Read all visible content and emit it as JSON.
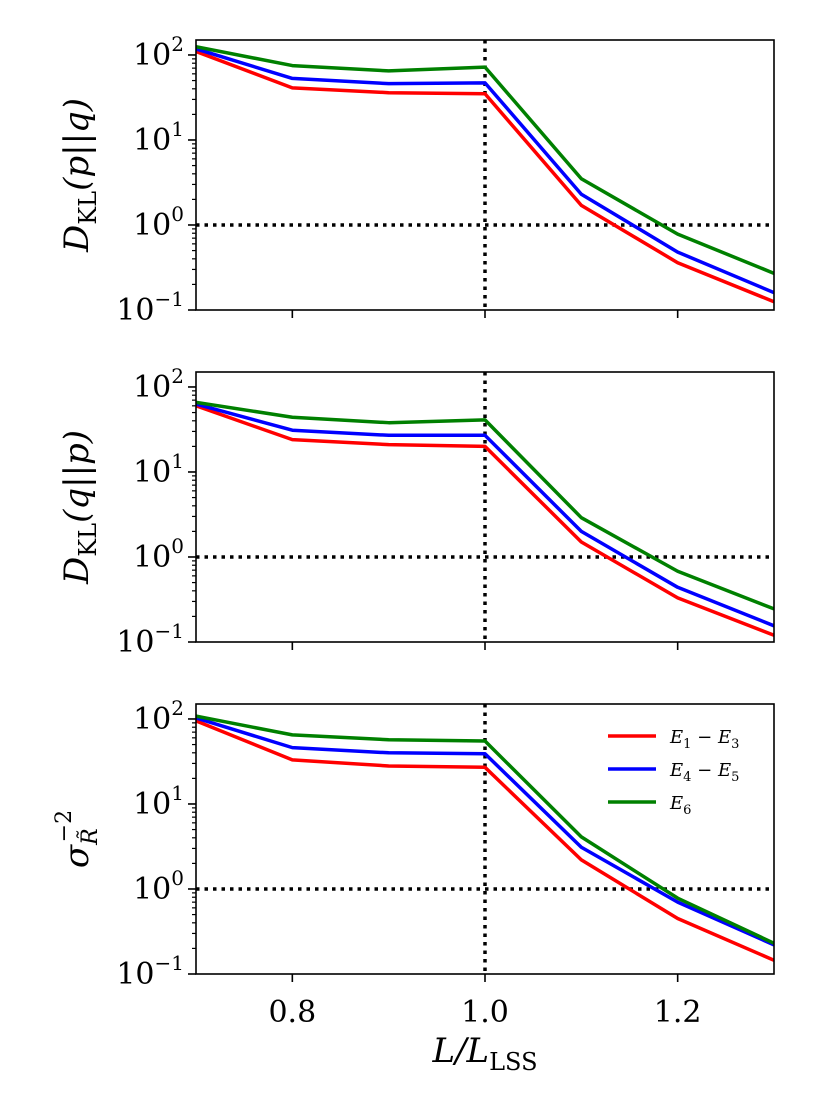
{
  "chart_data": [
    {
      "type": "line",
      "panel": "top",
      "ylabel": "D_KL(p||q)",
      "ylabel_parts": {
        "base": "D",
        "sub": "KL",
        "args": "(p||q)"
      },
      "yscale": "log",
      "ylim": [
        0.1,
        150
      ],
      "yticks": [
        {
          "value": 0.1,
          "base": "10",
          "exp": "−1"
        },
        {
          "value": 1,
          "base": "10",
          "exp": "0"
        },
        {
          "value": 10,
          "base": "10",
          "exp": "1"
        },
        {
          "value": 100,
          "base": "10",
          "exp": "2"
        }
      ],
      "xlim": [
        0.7,
        1.3
      ],
      "x": [
        0.7,
        0.8,
        0.9,
        1.0,
        1.1,
        1.2,
        1.3
      ],
      "hline": 1,
      "vline": 1.0,
      "series": [
        {
          "name": "E1 − E3",
          "color": "#ff0000",
          "values": [
            110,
            41,
            36,
            35,
            1.7,
            0.36,
            0.125
          ]
        },
        {
          "name": "E4 − E5",
          "color": "#0000ff",
          "values": [
            118,
            53,
            46,
            47,
            2.3,
            0.48,
            0.16
          ]
        },
        {
          "name": "E6",
          "color": "#008000",
          "values": [
            125,
            75,
            65,
            72,
            3.5,
            0.78,
            0.27
          ]
        }
      ]
    },
    {
      "type": "line",
      "panel": "middle",
      "ylabel": "D_KL(q||p)",
      "ylabel_parts": {
        "base": "D",
        "sub": "KL",
        "args": "(q||p)"
      },
      "yscale": "log",
      "ylim": [
        0.1,
        150
      ],
      "yticks": [
        {
          "value": 0.1,
          "base": "10",
          "exp": "−1"
        },
        {
          "value": 1,
          "base": "10",
          "exp": "0"
        },
        {
          "value": 10,
          "base": "10",
          "exp": "1"
        },
        {
          "value": 100,
          "base": "10",
          "exp": "2"
        }
      ],
      "xlim": [
        0.7,
        1.3
      ],
      "x": [
        0.7,
        0.8,
        0.9,
        1.0,
        1.1,
        1.2,
        1.3
      ],
      "hline": 1,
      "vline": 1.0,
      "series": [
        {
          "name": "E1 − E3",
          "color": "#ff0000",
          "values": [
            60,
            24,
            21,
            20,
            1.5,
            0.33,
            0.12
          ]
        },
        {
          "name": "E4 − E5",
          "color": "#0000ff",
          "values": [
            63,
            31,
            27,
            27,
            2.0,
            0.44,
            0.155
          ]
        },
        {
          "name": "E6",
          "color": "#008000",
          "values": [
            66,
            44,
            38,
            41,
            2.9,
            0.68,
            0.245
          ]
        }
      ]
    },
    {
      "type": "line",
      "panel": "bottom",
      "ylabel": "σ_R̃^−2",
      "ylabel_parts": {
        "base": "σ",
        "sub": "R̃",
        "sup": "−2"
      },
      "yscale": "log",
      "ylim": [
        0.1,
        150
      ],
      "yticks": [
        {
          "value": 0.1,
          "base": "10",
          "exp": "−1"
        },
        {
          "value": 1,
          "base": "10",
          "exp": "0"
        },
        {
          "value": 10,
          "base": "10",
          "exp": "1"
        },
        {
          "value": 100,
          "base": "10",
          "exp": "2"
        }
      ],
      "xlim": [
        0.7,
        1.3
      ],
      "x": [
        0.7,
        0.8,
        0.9,
        1.0,
        1.1,
        1.2,
        1.3
      ],
      "xticks": [
        {
          "value": 0.8,
          "label": "0.8"
        },
        {
          "value": 1.0,
          "label": "1.0"
        },
        {
          "value": 1.2,
          "label": "1.2"
        }
      ],
      "xlabel": "L/L_LSS",
      "xlabel_parts": {
        "base": "L/L",
        "sub": "LSS"
      },
      "hline": 1,
      "vline": 1.0,
      "legend": "top-right",
      "legend_entries": [
        {
          "label": "E1 − E3",
          "main": "E",
          "s1": "1",
          "mid": " − E",
          "s2": "3"
        },
        {
          "label": "E4 − E5",
          "main": "E",
          "s1": "4",
          "mid": " − E",
          "s2": "5"
        },
        {
          "label": "E6",
          "main": "E",
          "s1": "6",
          "mid": "",
          "s2": ""
        }
      ],
      "series": [
        {
          "name": "E1 − E3",
          "color": "#ff0000",
          "values": [
            95,
            33,
            28,
            27,
            2.2,
            0.45,
            0.145
          ]
        },
        {
          "name": "E4 − E5",
          "color": "#0000ff",
          "values": [
            103,
            46,
            40,
            39,
            3.1,
            0.7,
            0.22
          ]
        },
        {
          "name": "E6",
          "color": "#008000",
          "values": [
            108,
            65,
            57,
            55,
            4.1,
            0.78,
            0.23
          ]
        }
      ]
    }
  ]
}
